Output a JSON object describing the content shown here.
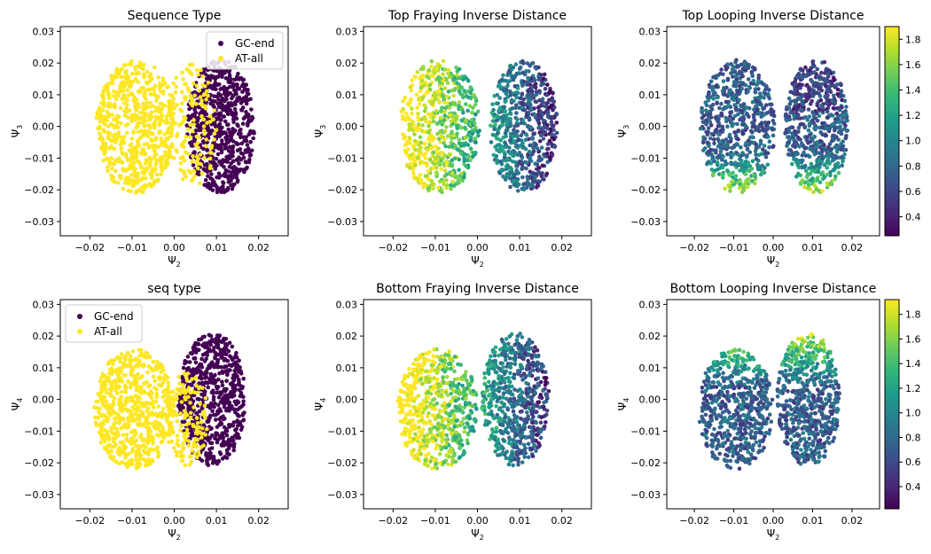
{
  "chart_data": [
    {
      "type": "scatter",
      "title": "Sequence Type",
      "xlabel": "Ψ",
      "xlabel_sub": "2",
      "ylabel": "Ψ",
      "ylabel_sub": "3",
      "xlim": [
        -0.027,
        0.027
      ],
      "ylim": [
        -0.0345,
        0.0315
      ],
      "xticks": [
        -0.02,
        -0.01,
        0.0,
        0.01,
        0.02
      ],
      "xtick_labels": [
        "−0.02",
        "−0.01",
        "0.00",
        "0.01",
        "0.02"
      ],
      "yticks": [
        -0.03,
        -0.02,
        -0.01,
        0.0,
        0.01,
        0.02,
        0.03
      ],
      "ytick_labels": [
        "−0.03",
        "−0.02",
        "−0.01",
        "0.00",
        "0.01",
        "0.02",
        "0.03"
      ],
      "coloring": "categorical",
      "legend": {
        "position": "top-right",
        "entries": [
          {
            "label": "GC-end",
            "color": "#440154"
          },
          {
            "label": "AT-all",
            "color": "#fde725"
          }
        ]
      },
      "clusters": [
        {
          "series": "GC-end",
          "color": "#440154",
          "cx": 0.011,
          "cy": 0.0,
          "rx": 0.008,
          "ry": 0.021
        },
        {
          "series": "AT-all",
          "color": "#fde725",
          "cx": -0.009,
          "cy": 0.0,
          "rx": 0.0095,
          "ry": 0.021
        }
      ],
      "overlap": {
        "series": "AT-all",
        "color": "#fde725",
        "cx": 0.004,
        "cy": 0.0,
        "rx": 0.006,
        "ry": 0.02
      }
    },
    {
      "type": "scatter",
      "title": "Top Fraying Inverse Distance",
      "xlabel": "Ψ",
      "xlabel_sub": "2",
      "ylabel": "Ψ",
      "ylabel_sub": "3",
      "xlim": [
        -0.027,
        0.027
      ],
      "ylim": [
        -0.0345,
        0.0315
      ],
      "xticks": [
        -0.02,
        -0.01,
        0.0,
        0.01,
        0.02
      ],
      "xtick_labels": [
        "−0.02",
        "−0.01",
        "0.00",
        "0.01",
        "0.02"
      ],
      "yticks": [
        -0.03,
        -0.02,
        -0.01,
        0.0,
        0.01,
        0.02,
        0.03
      ],
      "ytick_labels": [
        "−0.03",
        "−0.02",
        "−0.01",
        "0.00",
        "0.01",
        "0.02",
        "0.03"
      ],
      "coloring": "continuous",
      "color_pattern": "high-left",
      "clusters": [
        {
          "cx": 0.011,
          "cy": 0.0,
          "rx": 0.008,
          "ry": 0.021
        },
        {
          "cx": -0.009,
          "cy": 0.0,
          "rx": 0.0095,
          "ry": 0.021
        }
      ]
    },
    {
      "type": "scatter",
      "title": "Top Looping Inverse Distance",
      "xlabel": "Ψ",
      "xlabel_sub": "2",
      "ylabel": "Ψ",
      "ylabel_sub": "3",
      "xlim": [
        -0.027,
        0.027
      ],
      "ylim": [
        -0.0345,
        0.0315
      ],
      "xticks": [
        -0.02,
        -0.01,
        0.0,
        0.01,
        0.02
      ],
      "xtick_labels": [
        "−0.02",
        "−0.01",
        "0.00",
        "0.01",
        "0.02"
      ],
      "yticks": [
        -0.03,
        -0.02,
        -0.01,
        0.0,
        0.01,
        0.02,
        0.03
      ],
      "ytick_labels": [
        "−0.03",
        "−0.02",
        "−0.01",
        "0.00",
        "0.01",
        "0.02",
        "0.03"
      ],
      "coloring": "continuous",
      "color_pattern": "high-bottom",
      "colorbar": {
        "min": 0.25,
        "max": 1.9,
        "ticks": [
          0.4,
          0.6,
          0.8,
          1.0,
          1.2,
          1.4,
          1.6,
          1.8
        ],
        "tick_labels": [
          "0.4",
          "0.6",
          "0.8",
          "1.0",
          "1.2",
          "1.4",
          "1.6",
          "1.8"
        ]
      },
      "clusters": [
        {
          "cx": 0.011,
          "cy": 0.0,
          "rx": 0.008,
          "ry": 0.021
        },
        {
          "cx": -0.009,
          "cy": 0.0,
          "rx": 0.0095,
          "ry": 0.021
        }
      ]
    },
    {
      "type": "scatter",
      "title": "seq type",
      "xlabel": "Ψ",
      "xlabel_sub": "2",
      "ylabel": "Ψ",
      "ylabel_sub": "4",
      "xlim": [
        -0.027,
        0.027
      ],
      "ylim": [
        -0.0345,
        0.0315
      ],
      "xticks": [
        -0.02,
        -0.01,
        0.0,
        0.01,
        0.02
      ],
      "xtick_labels": [
        "−0.02",
        "−0.01",
        "0.00",
        "0.01",
        "0.02"
      ],
      "yticks": [
        -0.03,
        -0.02,
        -0.01,
        0.0,
        0.01,
        0.02,
        0.03
      ],
      "ytick_labels": [
        "−0.03",
        "−0.02",
        "−0.01",
        "0.00",
        "0.01",
        "0.02",
        "0.03"
      ],
      "coloring": "categorical",
      "legend": {
        "position": "top-left",
        "entries": [
          {
            "label": "GC-end",
            "color": "#440154"
          },
          {
            "label": "AT-all",
            "color": "#fde725"
          }
        ]
      },
      "clusters": [
        {
          "series": "GC-end",
          "color": "#440154",
          "cx": 0.009,
          "cy": 0.0,
          "rx": 0.008,
          "ry": 0.021
        },
        {
          "series": "AT-all",
          "color": "#fde725",
          "cx": -0.0095,
          "cy": -0.003,
          "rx": 0.0095,
          "ry": 0.019
        }
      ],
      "overlap": {
        "series": "AT-all",
        "color": "#fde725",
        "cx": 0.003,
        "cy": -0.006,
        "rx": 0.005,
        "ry": 0.015
      }
    },
    {
      "type": "scatter",
      "title": "Bottom Fraying Inverse Distance",
      "xlabel": "Ψ",
      "xlabel_sub": "2",
      "ylabel": "Ψ",
      "ylabel_sub": "4",
      "xlim": [
        -0.027,
        0.027
      ],
      "ylim": [
        -0.0345,
        0.0315
      ],
      "xticks": [
        -0.02,
        -0.01,
        0.0,
        0.01,
        0.02
      ],
      "xtick_labels": [
        "−0.02",
        "−0.01",
        "0.00",
        "0.01",
        "0.02"
      ],
      "yticks": [
        -0.03,
        -0.02,
        -0.01,
        0.0,
        0.01,
        0.02,
        0.03
      ],
      "ytick_labels": [
        "−0.03",
        "−0.02",
        "−0.01",
        "0.00",
        "0.01",
        "0.02",
        "0.03"
      ],
      "coloring": "continuous",
      "color_pattern": "high-left",
      "clusters": [
        {
          "cx": 0.009,
          "cy": 0.0,
          "rx": 0.008,
          "ry": 0.021
        },
        {
          "cx": -0.0095,
          "cy": -0.003,
          "rx": 0.0095,
          "ry": 0.019
        }
      ]
    },
    {
      "type": "scatter",
      "title": "Bottom Looping Inverse Distance",
      "xlabel": "Ψ",
      "xlabel_sub": "2",
      "ylabel": "Ψ",
      "ylabel_sub": "4",
      "xlim": [
        -0.027,
        0.027
      ],
      "ylim": [
        -0.0345,
        0.0315
      ],
      "xticks": [
        -0.02,
        -0.01,
        0.0,
        0.01,
        0.02
      ],
      "xtick_labels": [
        "−0.02",
        "−0.01",
        "0.00",
        "0.01",
        "0.02"
      ],
      "yticks": [
        -0.03,
        -0.02,
        -0.01,
        0.0,
        0.01,
        0.02,
        0.03
      ],
      "ytick_labels": [
        "−0.03",
        "−0.02",
        "−0.01",
        "0.00",
        "0.01",
        "0.02",
        "0.03"
      ],
      "coloring": "continuous",
      "color_pattern": "high-top",
      "colorbar": {
        "min": 0.22,
        "max": 1.92,
        "ticks": [
          0.4,
          0.6,
          0.8,
          1.0,
          1.2,
          1.4,
          1.6,
          1.8
        ],
        "tick_labels": [
          "0.4",
          "0.6",
          "0.8",
          "1.0",
          "1.2",
          "1.4",
          "1.6",
          "1.8"
        ]
      },
      "clusters": [
        {
          "cx": 0.009,
          "cy": 0.0,
          "rx": 0.008,
          "ry": 0.021
        },
        {
          "cx": -0.0095,
          "cy": -0.003,
          "rx": 0.0095,
          "ry": 0.019
        }
      ]
    }
  ]
}
